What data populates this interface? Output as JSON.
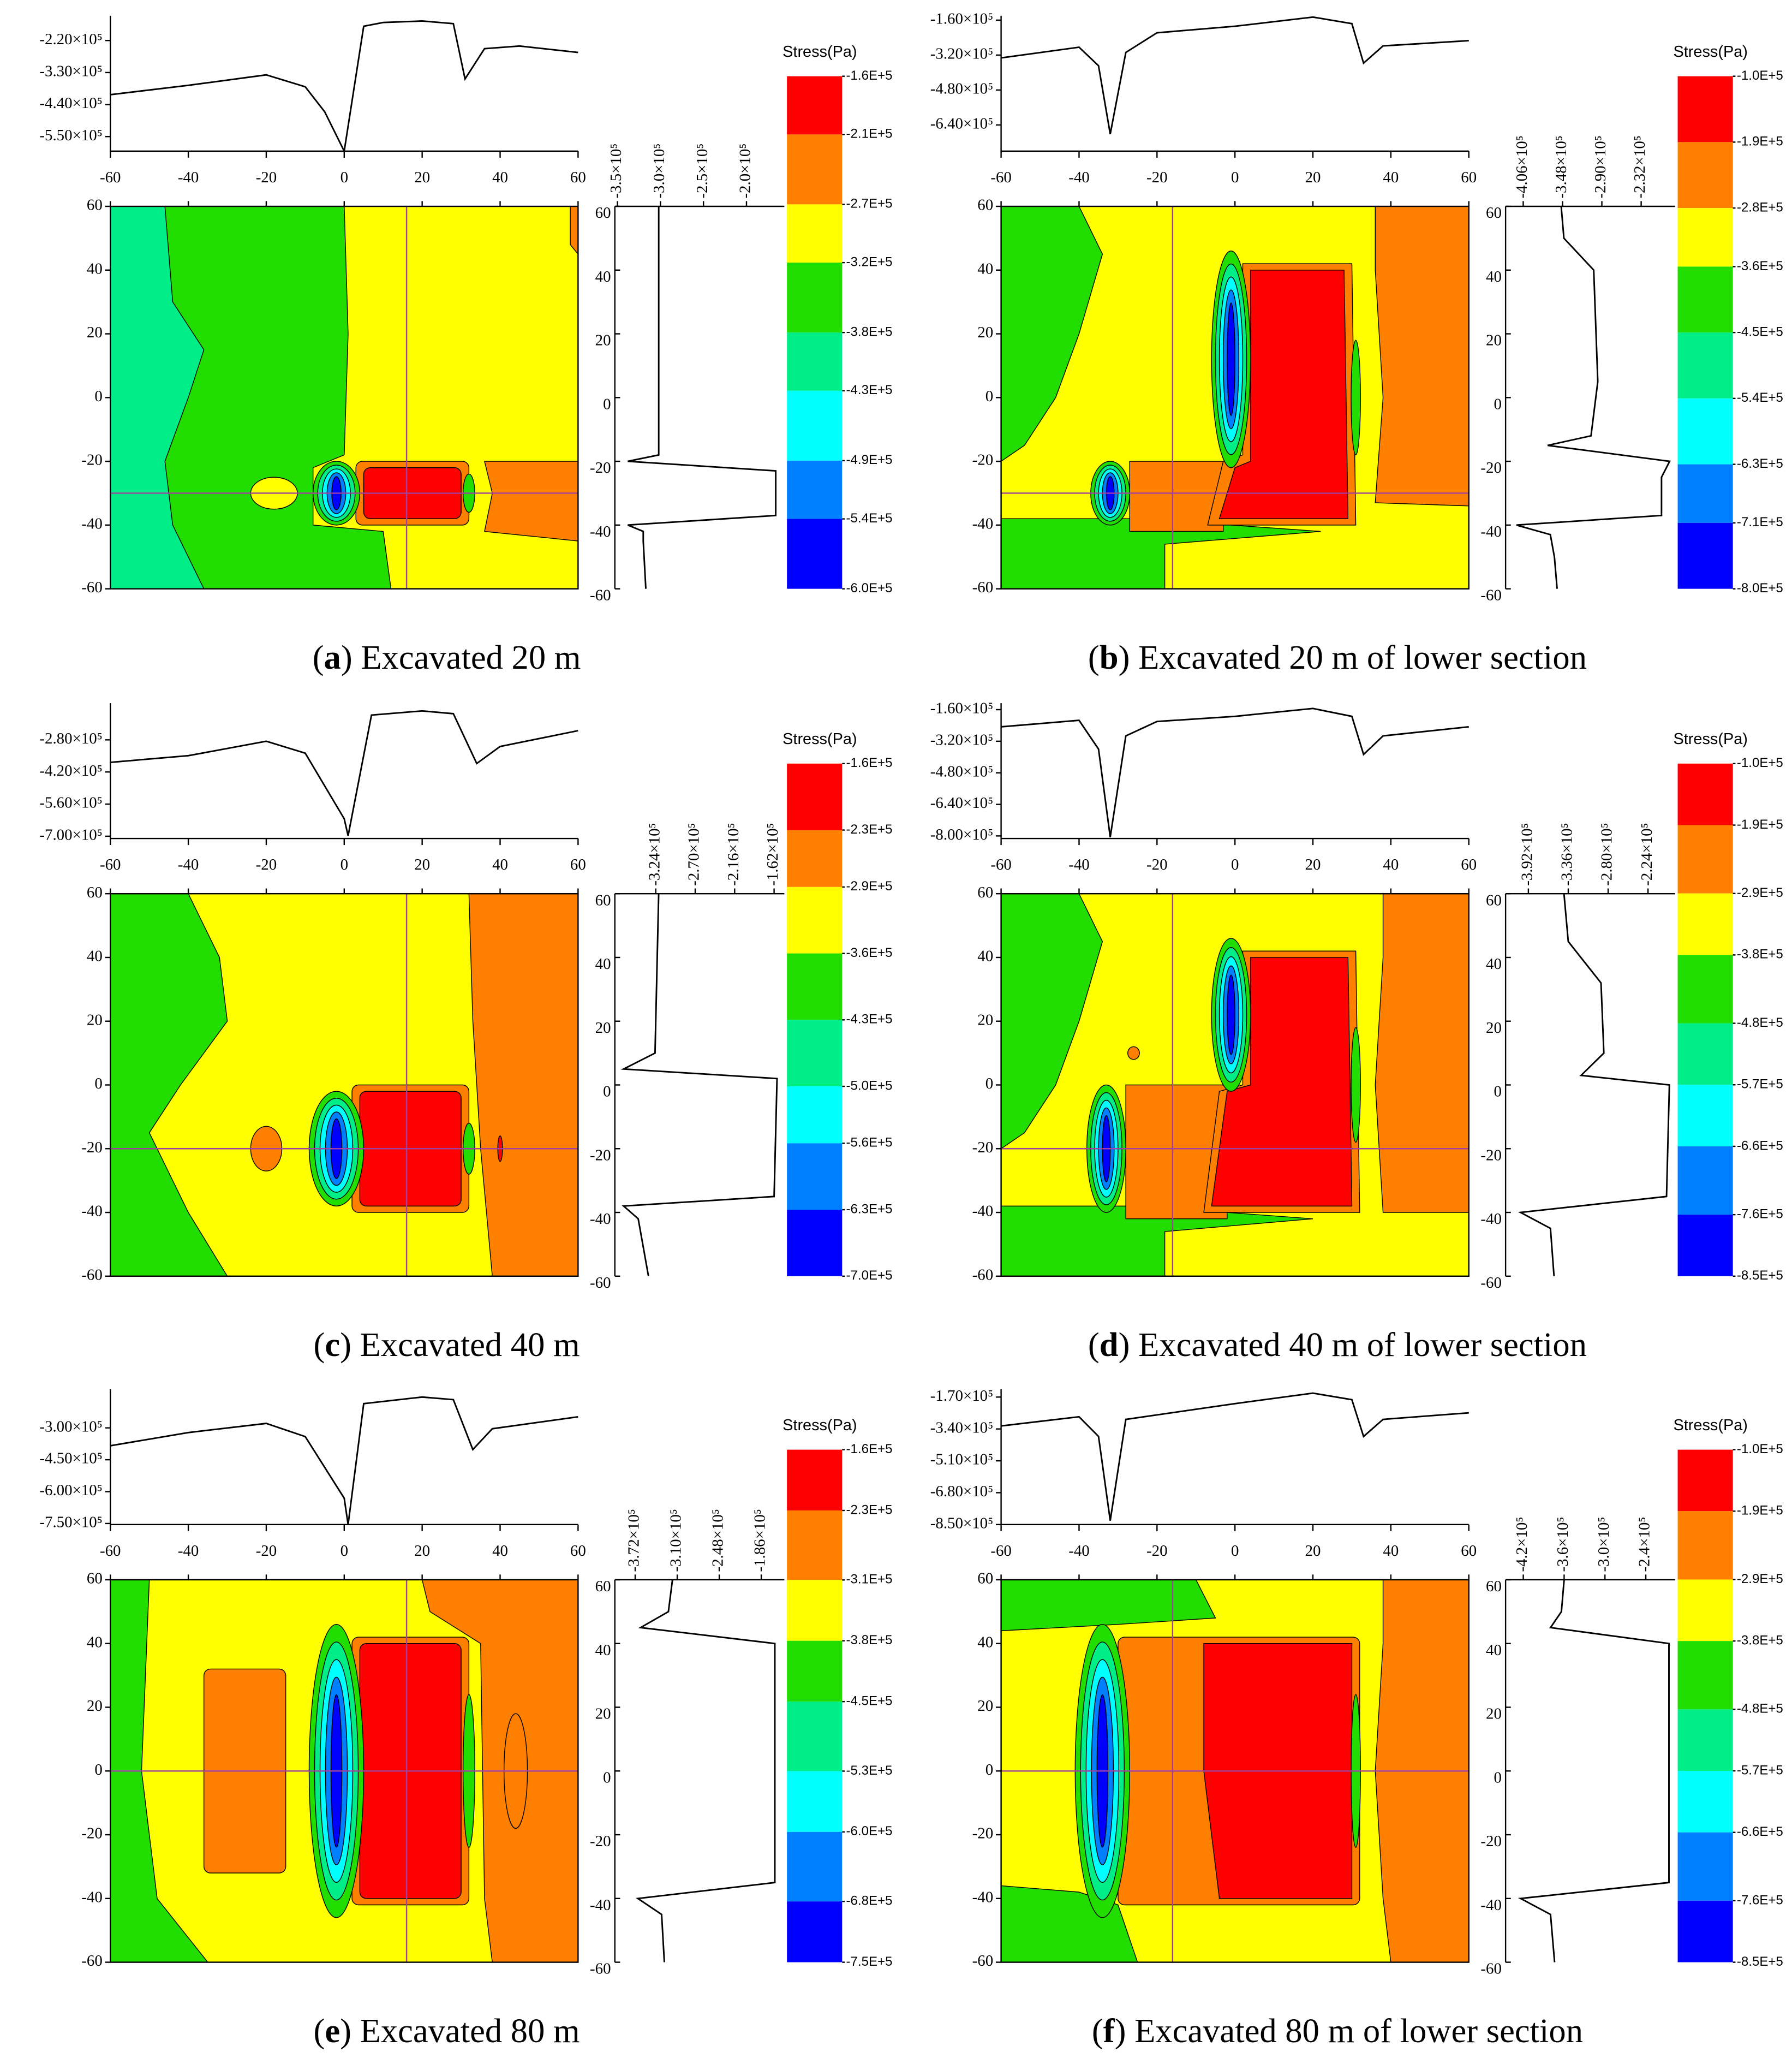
{
  "chart_data": [
    {
      "type": "contour",
      "caption": [
        "(",
        "a",
        ") Excavated 20 m"
      ],
      "xlim": [
        -60,
        60
      ],
      "xticks": [
        -60,
        -40,
        -20,
        0,
        20,
        40,
        60
      ],
      "ylim": [
        -60,
        60
      ],
      "yticks": [
        60,
        40,
        20,
        0,
        -20,
        -40,
        -60
      ],
      "top_profile": {
        "x": [
          -60,
          -40,
          -20,
          -10,
          -5,
          0,
          5,
          10,
          20,
          28,
          31,
          36,
          45,
          60
        ],
        "values": [
          -406000,
          -374000,
          -338000,
          -379000,
          -465000,
          -600000,
          -171000,
          -158000,
          -153000,
          -162000,
          -352000,
          -248000,
          -239000,
          -261000
        ],
        "ylim": [
          -600000,
          -135000
        ],
        "yticks": [
          {
            "value": -220000,
            "label": "-2.20×10⁵"
          },
          {
            "value": -330000,
            "label": "-3.30×10⁵"
          },
          {
            "value": -440000,
            "label": "-4.40×10⁵"
          },
          {
            "value": -550000,
            "label": "-5.50×10⁵"
          }
        ]
      },
      "right_profile": {
        "y": [
          60,
          -18,
          -20,
          -23,
          -37,
          -40,
          -42,
          -45,
          -60
        ],
        "values": [
          -302000,
          -302000,
          -338000,
          -166000,
          -166000,
          -338000,
          -320000,
          -320000,
          -317000
        ],
        "xlim": [
          -353000,
          -156000
        ],
        "xticks": [
          {
            "value": -350000,
            "label": "-3.5×10⁵"
          },
          {
            "value": -300000,
            "label": "-3.0×10⁵"
          },
          {
            "value": -250000,
            "label": "-2.5×10⁵"
          },
          {
            "value": -200000,
            "label": "-2.0×10⁵"
          }
        ]
      },
      "colorbar": {
        "title": "Stress(Pa)",
        "colors": [
          "#ff0000",
          "#ff8000",
          "#ffff00",
          "#22dd00",
          "#00ee88",
          "#00ffff",
          "#0080ff",
          "#0000ff"
        ],
        "ticks": [
          {
            "value": -160000,
            "label": "-1.6E+5"
          },
          {
            "value": -210000,
            "label": "-2.1E+5"
          },
          {
            "value": -270000,
            "label": "-2.7E+5"
          },
          {
            "value": -320000,
            "label": "-3.2E+5"
          },
          {
            "value": -380000,
            "label": "-3.8E+5"
          },
          {
            "value": -430000,
            "label": "-4.3E+5"
          },
          {
            "value": -490000,
            "label": "-4.9E+5"
          },
          {
            "value": -540000,
            "label": "-5.4E+5"
          },
          {
            "value": -600000,
            "label": "-6.0E+5"
          }
        ]
      }
    },
    {
      "type": "contour",
      "caption": [
        "(",
        "b",
        ") Excavated 20 m of lower section"
      ],
      "xlim": [
        -60,
        60
      ],
      "xticks": [
        -60,
        -40,
        -20,
        0,
        20,
        40,
        60
      ],
      "ylim": [
        -60,
        60
      ],
      "yticks": [
        60,
        40,
        20,
        0,
        -20,
        -40,
        -60
      ],
      "top_profile": {
        "x": [
          -60,
          -40,
          -35,
          -32,
          -28,
          -20,
          0,
          20,
          30,
          33,
          38,
          60
        ],
        "values": [
          -333000,
          -284000,
          -369000,
          -682000,
          -308000,
          -218000,
          -188000,
          -146000,
          -176000,
          -357000,
          -278000,
          -254000
        ],
        "ylim": [
          -760000,
          -140000
        ],
        "yticks": [
          {
            "value": -160000,
            "label": "-1.60×10⁵"
          },
          {
            "value": -320000,
            "label": "-3.20×10⁵"
          },
          {
            "value": -480000,
            "label": "-4.80×10⁵"
          },
          {
            "value": -640000,
            "label": "-6.40×10⁵"
          }
        ]
      },
      "right_profile": {
        "y": [
          60,
          50,
          40,
          5,
          -12,
          -15,
          -20,
          -25,
          -37,
          -40,
          -43,
          -50,
          -60
        ],
        "values": [
          -350000,
          -346000,
          -302000,
          -296000,
          -306000,
          -370000,
          -190000,
          -202000,
          -202000,
          -416000,
          -366000,
          -360000,
          -356000
        ],
        "xlim": [
          -432000,
          -182000
        ],
        "xticks": [
          {
            "value": -406000,
            "label": "-4.06×10⁵"
          },
          {
            "value": -348000,
            "label": "-3.48×10⁵"
          },
          {
            "value": -290000,
            "label": "-2.90×10⁵"
          },
          {
            "value": -232000,
            "label": "-2.32×10⁵"
          }
        ]
      },
      "colorbar": {
        "title": "Stress(Pa)",
        "colors": [
          "#ff0000",
          "#ff8000",
          "#ffff00",
          "#22dd00",
          "#00ee88",
          "#00ffff",
          "#0080ff",
          "#0000ff"
        ],
        "ticks": [
          {
            "value": -100000,
            "label": "-1.0E+5"
          },
          {
            "value": -190000,
            "label": "-1.9E+5"
          },
          {
            "value": -280000,
            "label": "-2.8E+5"
          },
          {
            "value": -360000,
            "label": "-3.6E+5"
          },
          {
            "value": -450000,
            "label": "-4.5E+5"
          },
          {
            "value": -540000,
            "label": "-5.4E+5"
          },
          {
            "value": -630000,
            "label": "-6.3E+5"
          },
          {
            "value": -710000,
            "label": "-7.1E+5"
          },
          {
            "value": -800000,
            "label": "-8.0E+5"
          }
        ]
      }
    },
    {
      "type": "contour",
      "caption": [
        "(",
        "c",
        ") Excavated 40 m"
      ],
      "xlim": [
        -60,
        60
      ],
      "xticks": [
        -60,
        -40,
        -20,
        0,
        20,
        40,
        60
      ],
      "ylim": [
        -60,
        60
      ],
      "yticks": [
        60,
        40,
        20,
        0,
        -20,
        -40,
        -60
      ],
      "top_profile": {
        "x": [
          -60,
          -40,
          -20,
          -10,
          0,
          1,
          7,
          20,
          28,
          34,
          40,
          60
        ],
        "values": [
          -378000,
          -349000,
          -286000,
          -338000,
          -624000,
          -698000,
          -172000,
          -154000,
          -166000,
          -383000,
          -309000,
          -240000
        ],
        "ylim": [
          -710000,
          -120000
        ],
        "yticks": [
          {
            "value": -280000,
            "label": "-2.80×10⁵"
          },
          {
            "value": -420000,
            "label": "-4.20×10⁵"
          },
          {
            "value": -560000,
            "label": "-5.60×10⁵"
          },
          {
            "value": -700000,
            "label": "-7.00×10⁵"
          }
        ]
      },
      "right_profile": {
        "y": [
          60,
          10,
          5,
          2,
          -35,
          -38,
          -42,
          -60
        ],
        "values": [
          -320000,
          -325000,
          -368000,
          -158000,
          -162000,
          -368000,
          -348000,
          -334000
        ],
        "xlim": [
          -380000,
          -148000
        ],
        "xticks": [
          {
            "value": -324000,
            "label": "-3.24×10⁵"
          },
          {
            "value": -270000,
            "label": "-2.70×10⁵"
          },
          {
            "value": -216000,
            "label": "-2.16×10⁵"
          },
          {
            "value": -162000,
            "label": "-1.62×10⁵"
          }
        ]
      },
      "colorbar": {
        "title": "Stress(Pa)",
        "colors": [
          "#ff0000",
          "#ff8000",
          "#ffff00",
          "#22dd00",
          "#00ee88",
          "#00ffff",
          "#0080ff",
          "#0000ff"
        ],
        "ticks": [
          {
            "value": -160000,
            "label": "-1.6E+5"
          },
          {
            "value": -230000,
            "label": "-2.3E+5"
          },
          {
            "value": -290000,
            "label": "-2.9E+5"
          },
          {
            "value": -360000,
            "label": "-3.6E+5"
          },
          {
            "value": -430000,
            "label": "-4.3E+5"
          },
          {
            "value": -500000,
            "label": "-5.0E+5"
          },
          {
            "value": -560000,
            "label": "-5.6E+5"
          },
          {
            "value": -630000,
            "label": "-6.3E+5"
          },
          {
            "value": -700000,
            "label": "-7.0E+5"
          }
        ]
      }
    },
    {
      "type": "contour",
      "caption": [
        "(",
        "d",
        ") Excavated 40 m of lower section"
      ],
      "xlim": [
        -60,
        60
      ],
      "xticks": [
        -60,
        -40,
        -20,
        0,
        20,
        40,
        60
      ],
      "ylim": [
        -60,
        60
      ],
      "yticks": [
        60,
        40,
        20,
        0,
        -20,
        -40,
        -60
      ],
      "top_profile": {
        "x": [
          -60,
          -40,
          -35,
          -32,
          -28,
          -20,
          0,
          20,
          30,
          33,
          38,
          60
        ],
        "values": [
          -247000,
          -214000,
          -360000,
          -806000,
          -293000,
          -220000,
          -194000,
          -154000,
          -194000,
          -387000,
          -293000,
          -247000
        ],
        "ylim": [
          -813000,
          -127000
        ],
        "yticks": [
          {
            "value": -160000,
            "label": "-1.60×10⁵"
          },
          {
            "value": -320000,
            "label": "-3.20×10⁵"
          },
          {
            "value": -480000,
            "label": "-4.80×10⁵"
          },
          {
            "value": -640000,
            "label": "-6.40×10⁵"
          },
          {
            "value": -800000,
            "label": "-8.00×10⁵"
          }
        ]
      },
      "right_profile": {
        "y": [
          60,
          45,
          32,
          10,
          3,
          0,
          -35,
          -40,
          -45,
          -60
        ],
        "values": [
          -342000,
          -336000,
          -290000,
          -286000,
          -318000,
          -194000,
          -198000,
          -403000,
          -361000,
          -356000
        ],
        "xlim": [
          -424000,
          -186000
        ],
        "xticks": [
          {
            "value": -392000,
            "label": "-3.92×10⁵"
          },
          {
            "value": -336000,
            "label": "-3.36×10⁵"
          },
          {
            "value": -280000,
            "label": "-2.80×10⁵"
          },
          {
            "value": -224000,
            "label": "-2.24×10⁵"
          }
        ]
      },
      "colorbar": {
        "title": "Stress(Pa)",
        "colors": [
          "#ff0000",
          "#ff8000",
          "#ffff00",
          "#22dd00",
          "#00ee88",
          "#00ffff",
          "#0080ff",
          "#0000ff"
        ],
        "ticks": [
          {
            "value": -100000,
            "label": "-1.0E+5"
          },
          {
            "value": -190000,
            "label": "-1.9E+5"
          },
          {
            "value": -290000,
            "label": "-2.9E+5"
          },
          {
            "value": -380000,
            "label": "-3.8E+5"
          },
          {
            "value": -480000,
            "label": "-4.8E+5"
          },
          {
            "value": -570000,
            "label": "-5.7E+5"
          },
          {
            "value": -660000,
            "label": "-6.6E+5"
          },
          {
            "value": -760000,
            "label": "-7.6E+5"
          },
          {
            "value": -850000,
            "label": "-8.5E+5"
          }
        ]
      }
    },
    {
      "type": "contour",
      "caption": [
        "(",
        "e",
        ") Excavated 80 m"
      ],
      "xlim": [
        -60,
        60
      ],
      "xticks": [
        -60,
        -40,
        -20,
        0,
        20,
        40,
        60
      ],
      "ylim": [
        -60,
        60
      ],
      "yticks": [
        60,
        40,
        20,
        0,
        -20,
        -40,
        -60
      ],
      "top_profile": {
        "x": [
          -60,
          -40,
          -20,
          -10,
          0,
          1,
          5,
          20,
          28,
          33,
          38,
          60
        ],
        "values": [
          -384000,
          -322000,
          -279000,
          -341000,
          -631000,
          -755000,
          -186000,
          -155000,
          -167000,
          -402000,
          -304000,
          -248000
        ],
        "ylim": [
          -755000,
          -118000
        ],
        "yticks": [
          {
            "value": -300000,
            "label": "-3.00×10⁵"
          },
          {
            "value": -450000,
            "label": "-4.50×10⁵"
          },
          {
            "value": -600000,
            "label": "-6.00×10⁵"
          },
          {
            "value": -750000,
            "label": "-7.50×10⁵"
          }
        ]
      },
      "right_profile": {
        "y": [
          60,
          50,
          45,
          40,
          -35,
          -40,
          -45,
          -60
        ],
        "values": [
          -317000,
          -323000,
          -364000,
          -166000,
          -166000,
          -368000,
          -333000,
          -329000
        ],
        "xlim": [
          -402000,
          -152000
        ],
        "xticks": [
          {
            "value": -372000,
            "label": "-3.72×10⁵"
          },
          {
            "value": -310000,
            "label": "-3.10×10⁵"
          },
          {
            "value": -248000,
            "label": "-2.48×10⁵"
          },
          {
            "value": -186000,
            "label": "-1.86×10⁵"
          }
        ]
      },
      "colorbar": {
        "title": "Stress(Pa)",
        "colors": [
          "#ff0000",
          "#ff8000",
          "#ffff00",
          "#22dd00",
          "#00ee88",
          "#00ffff",
          "#0080ff",
          "#0000ff"
        ],
        "ticks": [
          {
            "value": -160000,
            "label": "-1.6E+5"
          },
          {
            "value": -230000,
            "label": "-2.3E+5"
          },
          {
            "value": -310000,
            "label": "-3.1E+5"
          },
          {
            "value": -380000,
            "label": "-3.8E+5"
          },
          {
            "value": -450000,
            "label": "-4.5E+5"
          },
          {
            "value": -530000,
            "label": "-5.3E+5"
          },
          {
            "value": -600000,
            "label": "-6.0E+5"
          },
          {
            "value": -680000,
            "label": "-6.8E+5"
          },
          {
            "value": -750000,
            "label": "-7.5E+5"
          }
        ]
      }
    },
    {
      "type": "contour",
      "caption": [
        "(",
        "f",
        ") Excavated 80 m of lower section"
      ],
      "xlim": [
        -60,
        60
      ],
      "xticks": [
        -60,
        -40,
        -20,
        0,
        20,
        40,
        60
      ],
      "ylim": [
        -60,
        60
      ],
      "yticks": [
        60,
        40,
        20,
        0,
        -20,
        -40,
        -60
      ],
      "top_profile": {
        "x": [
          -60,
          -40,
          -35,
          -32,
          -28,
          0,
          20,
          30,
          33,
          38,
          60
        ],
        "values": [
          -324000,
          -275000,
          -380000,
          -829000,
          -289000,
          -205000,
          -149000,
          -184000,
          -380000,
          -289000,
          -254000
        ],
        "ylim": [
          -850000,
          -128000
        ],
        "yticks": [
          {
            "value": -170000,
            "label": "-1.70×10⁵"
          },
          {
            "value": -340000,
            "label": "-3.40×10⁵"
          },
          {
            "value": -510000,
            "label": "-5.10×10⁵"
          },
          {
            "value": -680000,
            "label": "-6.80×10⁵"
          },
          {
            "value": -850000,
            "label": "-8.50×10⁵"
          }
        ]
      },
      "right_profile": {
        "y": [
          60,
          50,
          45,
          40,
          -35,
          -40,
          -45,
          -60
        ],
        "values": [
          -360000,
          -364000,
          -380000,
          -206000,
          -206000,
          -424000,
          -380000,
          -374000
        ],
        "xlim": [
          -446000,
          -197000
        ],
        "xticks": [
          {
            "value": -420000,
            "label": "-4.2×10⁵"
          },
          {
            "value": -360000,
            "label": "-3.6×10⁵"
          },
          {
            "value": -300000,
            "label": "-3.0×10⁵"
          },
          {
            "value": -240000,
            "label": "-2.4×10⁵"
          }
        ]
      },
      "colorbar": {
        "title": "Stress(Pa)",
        "colors": [
          "#ff0000",
          "#ff8000",
          "#ffff00",
          "#22dd00",
          "#00ee88",
          "#00ffff",
          "#0080ff",
          "#0000ff"
        ],
        "ticks": [
          {
            "value": -100000,
            "label": "-1.0E+5"
          },
          {
            "value": -190000,
            "label": "-1.9E+5"
          },
          {
            "value": -290000,
            "label": "-2.9E+5"
          },
          {
            "value": -380000,
            "label": "-3.8E+5"
          },
          {
            "value": -480000,
            "label": "-4.8E+5"
          },
          {
            "value": -570000,
            "label": "-5.7E+5"
          },
          {
            "value": -660000,
            "label": "-6.6E+5"
          },
          {
            "value": -760000,
            "label": "-7.6E+5"
          },
          {
            "value": -850000,
            "label": "-8.5E+5"
          }
        ]
      }
    }
  ]
}
